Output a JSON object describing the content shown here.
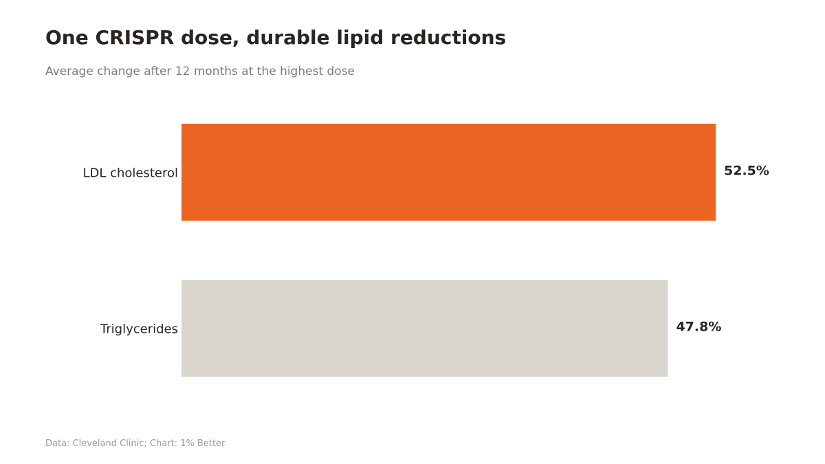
{
  "header": {
    "title": "One CRISPR dose, durable lipid reductions",
    "subtitle": "Average change after 12 months at the highest dose"
  },
  "chart_data": {
    "type": "bar",
    "orientation": "horizontal",
    "title": "One CRISPR dose, durable lipid reductions",
    "subtitle": "Average change after 12 months at the highest dose",
    "categories": [
      "LDL cholesterol",
      "Triglycerides"
    ],
    "values": [
      52.5,
      47.8
    ],
    "value_labels": [
      "52.5%",
      "47.8%"
    ],
    "unit": "%",
    "xlim": [
      0,
      52.5
    ],
    "grid": false,
    "legend": "none",
    "colors": [
      "#ec6421",
      "#dad5cc"
    ]
  },
  "footer": {
    "source": "Data: Cleveland Clinic; Chart: 1% Better"
  }
}
